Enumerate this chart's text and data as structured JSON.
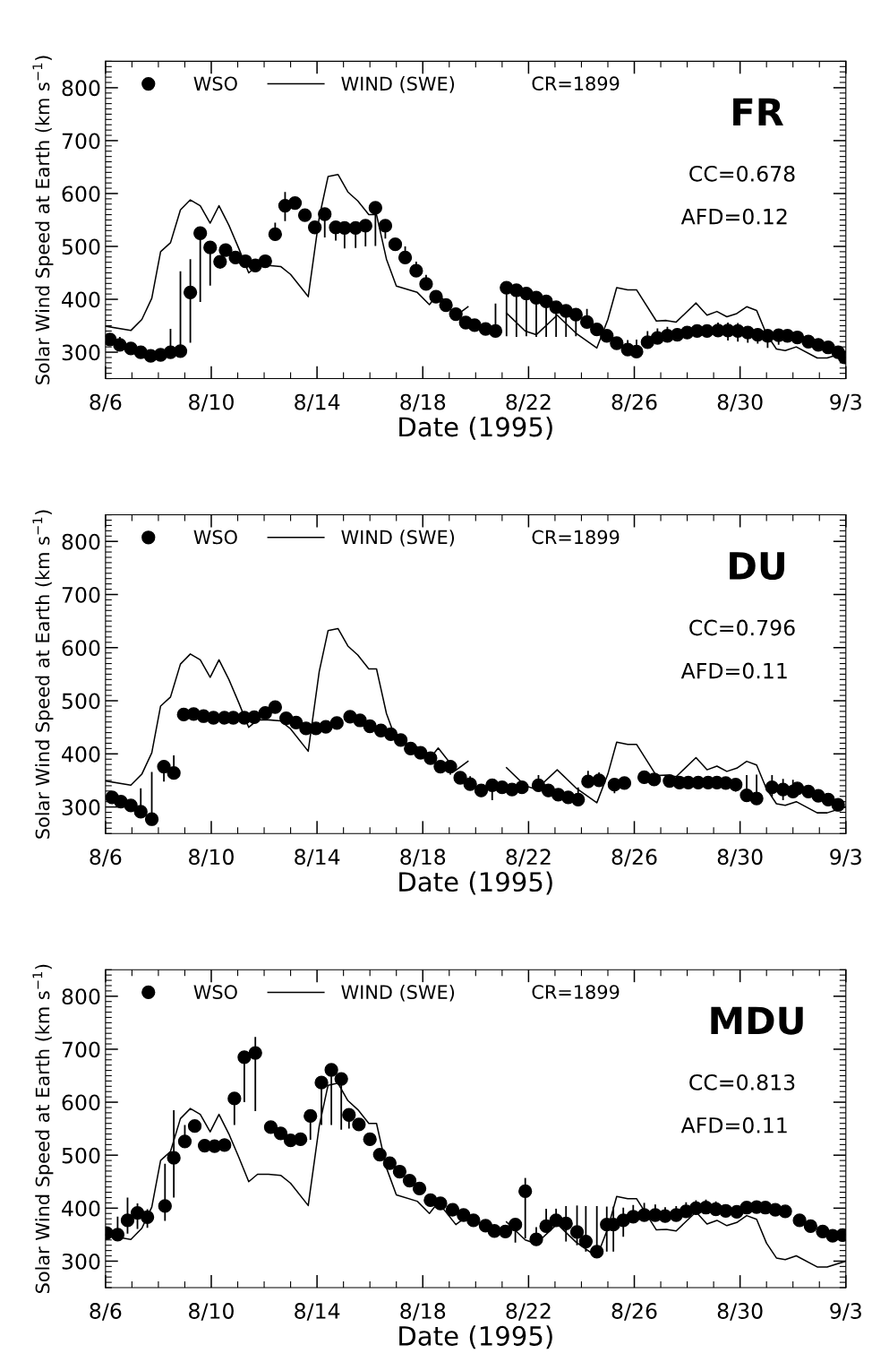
{
  "chart_data": [
    {
      "type": "scatter",
      "xlabel": "Date (1995)",
      "ylabel": "Solar Wind Speed at Earth (km s$^{−1}$)",
      "annotations": [
        "CR=1899",
        "FR",
        "CC=0.678",
        "AFD=0.12"
      ],
      "xlim": [
        "1995-08-06",
        "1995-09-03"
      ],
      "xticks": [
        {
          "value": "1995-08-06",
          "label": "8/6"
        },
        {
          "value": "1995-08-10",
          "label": "8/10"
        },
        {
          "value": "1995-08-14",
          "label": "8/14"
        },
        {
          "value": "1995-08-18",
          "label": "8/18"
        },
        {
          "value": "1995-08-22",
          "label": "8/22"
        },
        {
          "value": "1995-08-26",
          "label": "8/26"
        },
        {
          "value": "1995-08-30",
          "label": "8/30"
        },
        {
          "value": "1995-09-03",
          "label": "9/3"
        }
      ],
      "ylim": [
        250,
        850
      ],
      "yticks": [
        300,
        400,
        500,
        600,
        700,
        800
      ],
      "grid": false,
      "legend": "top left",
      "series": [
        {
          "name": "WSO",
          "color": "#000000",
          "marker": "circle",
          "x": [
            "1995-08-06T04:00",
            "1995-08-06T13:00",
            "1995-08-06T23:00",
            "1995-08-07T08:00",
            "1995-08-07T17:00",
            "1995-08-08T02:00",
            "1995-08-08T11:00",
            "1995-08-08T20:00",
            "1995-08-09T05:00",
            "1995-08-09T14:00",
            "1995-08-09T23:00",
            "1995-08-10T08:00",
            "1995-08-10T13:00",
            "1995-08-10T22:00",
            "1995-08-11T07:00",
            "1995-08-11T16:00",
            "1995-08-12T01:00",
            "1995-08-12T10:00",
            "1995-08-12T19:00",
            "1995-08-13T04:00",
            "1995-08-13T13:00",
            "1995-08-13T22:00",
            "1995-08-14T07:00",
            "1995-08-14T17:00",
            "1995-08-15T01:00",
            "1995-08-15T11:00",
            "1995-08-15T20:00",
            "1995-08-16T05:00",
            "1995-08-16T14:00",
            "1995-08-16T23:00",
            "1995-08-17T08:00",
            "1995-08-17T18:00",
            "1995-08-18T03:00",
            "1995-08-18T12:00",
            "1995-08-18T21:00",
            "1995-08-19T06:00",
            "1995-08-19T15:00",
            "1995-08-19T23:00",
            "1995-08-20T09:00",
            "1995-08-20T18:00",
            "1995-08-21T04:00",
            "1995-08-21T13:00",
            "1995-08-21T22:00",
            "1995-08-22T07:00",
            "1995-08-22T16:00",
            "1995-08-23T01:00",
            "1995-08-23T10:00",
            "1995-08-23T19:00",
            "1995-08-24T05:00",
            "1995-08-24T14:00",
            "1995-08-24T23:00",
            "1995-08-25T08:00",
            "1995-08-25T18:00",
            "1995-08-26T02:00",
            "1995-08-26T12:00",
            "1995-08-26T21:00",
            "1995-08-27T06:00",
            "1995-08-27T15:00",
            "1995-08-28T00:00",
            "1995-08-28T09:00",
            "1995-08-28T18:00",
            "1995-08-29T04:00",
            "1995-08-29T13:00",
            "1995-08-29T22:00",
            "1995-08-30T07:00",
            "1995-08-30T16:00",
            "1995-08-31T01:00",
            "1995-08-31T11:00",
            "1995-08-31T19:00",
            "1995-09-01T04:00",
            "1995-09-01T14:00",
            "1995-09-01T23:00",
            "1995-09-02T08:00",
            "1995-09-02T17:00",
            "1995-09-02T23:00"
          ],
          "values": [
            324,
            314,
            307,
            300,
            293,
            295,
            300,
            302,
            413,
            525,
            498,
            471,
            493,
            479,
            472,
            464,
            472,
            523,
            577,
            582,
            559,
            536,
            561,
            536,
            535,
            535,
            539,
            573,
            539,
            504,
            479,
            454,
            429,
            405,
            389,
            372,
            356,
            351,
            344,
            340,
            422,
            417,
            411,
            403,
            396,
            385,
            378,
            371,
            357,
            343,
            331,
            317,
            305,
            301,
            319,
            327,
            331,
            333,
            337,
            340,
            340,
            341,
            341,
            340,
            337,
            333,
            331,
            332,
            331,
            328,
            320,
            314,
            309,
            300,
            290
          ],
          "errors": [
            null,
            [
              314,
              329
            ],
            null,
            null,
            null,
            null,
            [
              300,
              344
            ],
            [
              302,
              453
            ],
            [
              318,
              476
            ],
            [
              395,
              525
            ],
            [
              426,
              498
            ],
            [
              458,
              471
            ],
            null,
            null,
            null,
            null,
            null,
            [
              523,
              545
            ],
            [
              548,
              603
            ],
            null,
            null,
            null,
            [
              517,
              561
            ],
            [
              511,
              536
            ],
            [
              496,
              535
            ],
            [
              497,
              535
            ],
            [
              500,
              539
            ],
            [
              501,
              573
            ],
            [
              515,
              539
            ],
            null,
            [
              479,
              500
            ],
            [
              454,
              471
            ],
            [
              429,
              446
            ],
            null,
            null,
            null,
            null,
            null,
            null,
            [
              340,
              392
            ],
            [
              330,
              422
            ],
            [
              329,
              417
            ],
            [
              330,
              411
            ],
            [
              329,
              403
            ],
            [
              329,
              396
            ],
            [
              329,
              385
            ],
            [
              329,
              378
            ],
            [
              330,
              371
            ],
            [
              357,
              382
            ],
            null,
            null,
            null,
            [
              305,
              323
            ],
            [
              301,
              324
            ],
            [
              319,
              340
            ],
            [
              327,
              345
            ],
            [
              331,
              348
            ],
            null,
            null,
            null,
            null,
            [
              341,
              356
            ],
            [
              322,
              356
            ],
            [
              320,
              355
            ],
            [
              318,
              337
            ],
            [
              316,
              333
            ],
            [
              308,
              331
            ],
            [
              314,
              332
            ],
            null,
            null,
            null,
            null,
            null,
            null,
            null
          ]
        },
        {
          "name": "WIND (SWE)",
          "type": "line",
          "color": "#000000",
          "line_style": "solid",
          "x": [
            "1995-08-06T00:00",
            "1995-08-06T23:00",
            "1995-08-07T09:00",
            "1995-08-07T18:00",
            "1995-08-08T02:00",
            "1995-08-08T11:00",
            "1995-08-08T20:00",
            "1995-08-09T05:00",
            "1995-08-09T14:00",
            "1995-08-09T23:00",
            "1995-08-10T07:00",
            "1995-08-10T16:00",
            "1995-08-11T01:00",
            "1995-08-11T10:00",
            "1995-08-11T18:00",
            "1995-08-12T04:00",
            "1995-08-12T15:00",
            "1995-08-13T00:00",
            "1995-08-13T16:00",
            "1995-08-14T02:00",
            "1995-08-14T10:00",
            "1995-08-14T19:00",
            "1995-08-15T04:00",
            "1995-08-15T13:00",
            "1995-08-15T23:00",
            "1995-08-16T06:00",
            "1995-08-16T15:00",
            "1995-08-17T00:00",
            "1995-08-17T19:00",
            "1995-08-18T06:00",
            "1995-08-18T14:00",
            "1995-08-19T06:00",
            "1995-08-19T17:00",
            "1995-08-19T20:00",
            "1995-08-21T02:00",
            "1995-08-21T04:00",
            "1995-08-21T21:00",
            "1995-08-22T07:00",
            "1995-08-23T02:00",
            "1995-08-23T19:00",
            "1995-08-24T14:00",
            "1995-08-25T00:00",
            "1995-08-25T08:00",
            "1995-08-25T18:00",
            "1995-08-26T02:00",
            "1995-08-26T20:00",
            "1995-08-27T05:00",
            "1995-08-27T14:00",
            "1995-08-28T08:00",
            "1995-08-28T18:00",
            "1995-08-29T03:00",
            "1995-08-29T12:00",
            "1995-08-29T21:00",
            "1995-08-30T06:00",
            "1995-08-30T15:00",
            "1995-08-31T00:00",
            "1995-08-31T09:00",
            "1995-08-31T17:00",
            "1995-09-01T03:00",
            "1995-09-01T22:00",
            "1995-09-02T07:00",
            "1995-09-03T00:00"
          ],
          "values": [
            349,
            341,
            362,
            402,
            490,
            507,
            569,
            588,
            577,
            544,
            577,
            540,
            496,
            450,
            464,
            464,
            462,
            447,
            405,
            555,
            632,
            636,
            603,
            586,
            560,
            560,
            476,
            425,
            413,
            390,
            411,
            369,
            386,
            null,
            null,
            374,
            340,
            333,
            370,
            336,
            308,
            362,
            422,
            418,
            418,
            359,
            360,
            357,
            393,
            370,
            377,
            367,
            373,
            386,
            379,
            334,
            306,
            303,
            310,
            289,
            289,
            300
          ]
        }
      ]
    },
    {
      "type": "scatter",
      "xlabel": "Date (1995)",
      "ylabel": "Solar Wind Speed at Earth (km s$^{−1}$)",
      "annotations": [
        "CR=1899",
        "DU",
        "CC=0.796",
        "AFD=0.11"
      ],
      "xlim": [
        "1995-08-06",
        "1995-09-03"
      ],
      "xticks": [
        {
          "value": "1995-08-06",
          "label": "8/6"
        },
        {
          "value": "1995-08-10",
          "label": "8/10"
        },
        {
          "value": "1995-08-14",
          "label": "8/14"
        },
        {
          "value": "1995-08-18",
          "label": "8/18"
        },
        {
          "value": "1995-08-22",
          "label": "8/22"
        },
        {
          "value": "1995-08-26",
          "label": "8/26"
        },
        {
          "value": "1995-08-30",
          "label": "8/30"
        },
        {
          "value": "1995-09-03",
          "label": "9/3"
        }
      ],
      "ylim": [
        250,
        850
      ],
      "yticks": [
        300,
        400,
        500,
        600,
        700,
        800
      ],
      "grid": false,
      "legend": "top left",
      "series": [
        {
          "name": "WSO",
          "color": "#000000",
          "marker": "circle",
          "x": [
            "1995-08-06T06:00",
            "1995-08-06T14:00",
            "1995-08-06T23:00",
            "1995-08-07T08:00",
            "1995-08-07T18:00",
            "1995-08-08T05:00",
            "1995-08-08T14:00",
            "1995-08-08T23:00",
            "1995-08-09T08:00",
            "1995-08-09T17:00",
            "1995-08-10T02:00",
            "1995-08-10T12:00",
            "1995-08-10T20:00",
            "1995-08-11T06:00",
            "1995-08-11T15:00",
            "1995-08-12T01:00",
            "1995-08-12T10:00",
            "1995-08-12T20:00",
            "1995-08-13T05:00",
            "1995-08-13T14:00",
            "1995-08-13T23:00",
            "1995-08-14T08:00",
            "1995-08-14T18:00",
            "1995-08-15T06:00",
            "1995-08-15T15:00",
            "1995-08-16T00:00",
            "1995-08-16T10:00",
            "1995-08-16T19:00",
            "1995-08-17T04:00",
            "1995-08-17T13:00",
            "1995-08-17T22:00",
            "1995-08-18T07:00",
            "1995-08-18T16:00",
            "1995-08-19T01:00",
            "1995-08-19T10:00",
            "1995-08-19T19:00",
            "1995-08-20T05:00",
            "1995-08-20T15:00",
            "1995-08-21T00:00",
            "1995-08-21T09:00",
            "1995-08-21T18:00",
            "1995-08-22T09:00",
            "1995-08-22T18:00",
            "1995-08-23T03:00",
            "1995-08-23T12:00",
            "1995-08-23T21:00",
            "1995-08-24T06:00",
            "1995-08-24T16:00",
            "1995-08-25T06:00",
            "1995-08-25T15:00",
            "1995-08-26T09:00",
            "1995-08-26T18:00",
            "1995-08-27T08:00",
            "1995-08-27T17:00",
            "1995-08-28T01:00",
            "1995-08-28T10:00",
            "1995-08-28T19:00",
            "1995-08-29T03:00",
            "1995-08-29T11:00",
            "1995-08-29T20:00",
            "1995-08-30T06:00",
            "1995-08-30T15:00",
            "1995-08-31T05:00",
            "1995-08-31T15:00",
            "1995-09-01T00:00",
            "1995-09-01T04:00",
            "1995-09-01T14:00",
            "1995-09-01T23:00",
            "1995-09-02T08:00",
            "1995-09-02T17:00"
          ],
          "values": [
            318,
            310,
            303,
            291,
            277,
            376,
            364,
            474,
            475,
            471,
            468,
            468,
            468,
            468,
            469,
            477,
            488,
            467,
            459,
            448,
            448,
            451,
            458,
            470,
            463,
            452,
            444,
            437,
            426,
            410,
            402,
            392,
            376,
            376,
            355,
            343,
            331,
            341,
            337,
            333,
            337,
            341,
            331,
            323,
            318,
            314,
            348,
            350,
            342,
            345,
            356,
            352,
            349,
            346,
            346,
            346,
            346,
            346,
            345,
            342,
            322,
            316,
            337,
            333,
            329,
            335,
            329,
            321,
            314,
            304
          ],
          "errors": [
            [
              318,
              328
            ],
            null,
            [
              303,
              313
            ],
            [
              291,
              335
            ],
            [
              277,
              366
            ],
            [
              348,
              376
            ],
            [
              364,
              397
            ],
            null,
            null,
            null,
            10,
            [
              456,
              478
            ],
            10,
            null,
            null,
            null,
            [
              478,
              500
            ],
            null,
            null,
            null,
            [
              438,
              448
            ],
            null,
            null,
            null,
            null,
            null,
            null,
            null,
            null,
            null,
            null,
            [
              382,
              392
            ],
            null,
            [
              361,
              376
            ],
            null,
            [
              343,
              358
            ],
            null,
            [
              313,
              341
            ],
            null,
            null,
            null,
            [
              341,
              360
            ],
            null,
            null,
            null,
            [
              314,
              337
            ],
            [
              348,
              368
            ],
            [
              350,
              365
            ],
            [
              326,
              342
            ],
            null,
            null,
            null,
            [
              339,
              349
            ],
            null,
            null,
            null,
            null,
            null,
            null,
            [
              329,
              342
            ],
            [
              322,
              360
            ],
            [
              316,
              361
            ],
            [
              319,
              360
            ],
            [
              313,
              353
            ],
            [
              329,
              351
            ],
            null,
            null,
            null,
            null,
            null
          ]
        },
        {
          "name": "WIND (SWE)",
          "type": "line",
          "color": "#000000",
          "line_style": "solid",
          "x": [
            "1995-08-06T00:00",
            "1995-08-06T23:00",
            "1995-08-07T09:00",
            "1995-08-07T18:00",
            "1995-08-08T02:00",
            "1995-08-08T11:00",
            "1995-08-08T20:00",
            "1995-08-09T05:00",
            "1995-08-09T14:00",
            "1995-08-09T23:00",
            "1995-08-10T07:00",
            "1995-08-10T16:00",
            "1995-08-11T01:00",
            "1995-08-11T10:00",
            "1995-08-11T18:00",
            "1995-08-12T04:00",
            "1995-08-12T15:00",
            "1995-08-13T00:00",
            "1995-08-13T16:00",
            "1995-08-14T02:00",
            "1995-08-14T10:00",
            "1995-08-14T19:00",
            "1995-08-15T04:00",
            "1995-08-15T13:00",
            "1995-08-15T23:00",
            "1995-08-16T06:00",
            "1995-08-16T15:00",
            "1995-08-17T00:00",
            "1995-08-17T19:00",
            "1995-08-18T06:00",
            "1995-08-18T14:00",
            "1995-08-19T06:00",
            "1995-08-19T17:00",
            "1995-08-19T20:00",
            "1995-08-21T02:00",
            "1995-08-21T04:00",
            "1995-08-21T21:00",
            "1995-08-22T07:00",
            "1995-08-23T02:00",
            "1995-08-23T19:00",
            "1995-08-24T14:00",
            "1995-08-25T00:00",
            "1995-08-25T08:00",
            "1995-08-25T18:00",
            "1995-08-26T02:00",
            "1995-08-26T20:00",
            "1995-08-27T05:00",
            "1995-08-27T14:00",
            "1995-08-28T08:00",
            "1995-08-28T18:00",
            "1995-08-29T03:00",
            "1995-08-29T12:00",
            "1995-08-29T21:00",
            "1995-08-30T06:00",
            "1995-08-30T15:00",
            "1995-08-31T00:00",
            "1995-08-31T09:00",
            "1995-08-31T17:00",
            "1995-09-01T03:00",
            "1995-09-01T22:00",
            "1995-09-02T07:00",
            "1995-09-03T00:00"
          ],
          "values": [
            349,
            341,
            362,
            402,
            490,
            507,
            569,
            588,
            577,
            544,
            577,
            540,
            496,
            450,
            464,
            464,
            462,
            447,
            405,
            555,
            632,
            636,
            603,
            586,
            560,
            560,
            476,
            425,
            413,
            390,
            411,
            369,
            386,
            null,
            null,
            374,
            340,
            333,
            370,
            336,
            308,
            362,
            422,
            418,
            418,
            359,
            360,
            357,
            393,
            370,
            377,
            367,
            373,
            386,
            379,
            334,
            306,
            303,
            310,
            289,
            289,
            300
          ]
        }
      ]
    },
    {
      "type": "scatter",
      "xlabel": "Date (1995)",
      "ylabel": "Solar Wind Speed at Earth (km s$^{−1}$)",
      "annotations": [
        "CR=1899",
        "MDU",
        "CC=0.813",
        "AFD=0.11"
      ],
      "xlim": [
        "1995-08-06",
        "1995-09-03"
      ],
      "xticks": [
        {
          "value": "1995-08-06",
          "label": "8/6"
        },
        {
          "value": "1995-08-10",
          "label": "8/10"
        },
        {
          "value": "1995-08-14",
          "label": "8/14"
        },
        {
          "value": "1995-08-18",
          "label": "8/18"
        },
        {
          "value": "1995-08-22",
          "label": "8/22"
        },
        {
          "value": "1995-08-26",
          "label": "8/26"
        },
        {
          "value": "1995-08-30",
          "label": "8/30"
        },
        {
          "value": "1995-09-03",
          "label": "9/3"
        }
      ],
      "ylim": [
        250,
        850
      ],
      "yticks": [
        300,
        400,
        500,
        600,
        700,
        800
      ],
      "grid": false,
      "legend": "top left",
      "series": [
        {
          "name": "WSO",
          "color": "#000000",
          "marker": "circle",
          "x": [
            "1995-08-06T01:00",
            "1995-08-06T11:00",
            "1995-08-06T20:00",
            "1995-08-07T05:00",
            "1995-08-07T14:00",
            "1995-08-08T06:00",
            "1995-08-08T14:00",
            "1995-08-09T00:00",
            "1995-08-09T09:00",
            "1995-08-09T18:00",
            "1995-08-10T03:00",
            "1995-08-10T12:00",
            "1995-08-10T21:00",
            "1995-08-11T06:00",
            "1995-08-11T16:00",
            "1995-08-12T06:00",
            "1995-08-12T15:00",
            "1995-08-13T00:00",
            "1995-08-13T09:00",
            "1995-08-13T18:00",
            "1995-08-14T04:00",
            "1995-08-14T13:00",
            "1995-08-14T22:00",
            "1995-08-15T05:00",
            "1995-08-15T14:00",
            "1995-08-16T00:00",
            "1995-08-16T09:00",
            "1995-08-16T18:00",
            "1995-08-17T03:00",
            "1995-08-17T12:00",
            "1995-08-17T21:00",
            "1995-08-18T07:00",
            "1995-08-18T16:00",
            "1995-08-19T03:00",
            "1995-08-19T13:00",
            "1995-08-19T22:00",
            "1995-08-20T09:00",
            "1995-08-20T17:00",
            "1995-08-21T03:00",
            "1995-08-21T12:00",
            "1995-08-21T21:00",
            "1995-08-22T07:00",
            "1995-08-22T16:00",
            "1995-08-23T01:00",
            "1995-08-23T10:00",
            "1995-08-23T20:00",
            "1995-08-24T04:00",
            "1995-08-24T14:00",
            "1995-08-24T23:00",
            "1995-08-25T05:00",
            "1995-08-25T14:00",
            "1995-08-25T23:00",
            "1995-08-26T09:00",
            "1995-08-26T19:00",
            "1995-08-27T04:00",
            "1995-08-27T14:00",
            "1995-08-27T23:00",
            "1995-08-28T08:00",
            "1995-08-28T17:00",
            "1995-08-29T02:00",
            "1995-08-29T11:00",
            "1995-08-29T21:00",
            "1995-08-30T06:00",
            "1995-08-30T15:00",
            "1995-08-30T23:00",
            "1995-08-31T08:00",
            "1995-08-31T17:00",
            "1995-09-01T06:00",
            "1995-09-01T16:00",
            "1995-09-02T03:00",
            "1995-09-02T12:00",
            "1995-09-02T21:00"
          ],
          "values": [
            353,
            350,
            377,
            391,
            383,
            404,
            495,
            526,
            555,
            518,
            517,
            519,
            607,
            685,
            693,
            553,
            541,
            528,
            530,
            574,
            637,
            661,
            644,
            576,
            558,
            530,
            501,
            485,
            469,
            452,
            437,
            415,
            409,
            397,
            387,
            377,
            367,
            357,
            356,
            369,
            432,
            341,
            366,
            377,
            371,
            355,
            337,
            318,
            369,
            369,
            377,
            384,
            387,
            387,
            385,
            387,
            394,
            400,
            401,
            398,
            395,
            393,
            401,
            402,
            401,
            397,
            394,
            377,
            366,
            356,
            348,
            349
          ],
          "errors": [
            10,
            [
              350,
              384
            ],
            [
              352,
              420
            ],
            [
              361,
              409
            ],
            [
              363,
              398
            ],
            [
              376,
              484
            ],
            [
              420,
              585
            ],
            [
              526,
              557
            ],
            null,
            null,
            null,
            null,
            [
              557,
              607
            ],
            [
              600,
              685
            ],
            [
              583,
              723
            ],
            null,
            null,
            null,
            null,
            [
              529,
              574
            ],
            [
              557,
              637
            ],
            [
              557,
              661
            ],
            [
              548,
              644
            ],
            [
              550,
              576
            ],
            null,
            null,
            null,
            null,
            null,
            null,
            null,
            null,
            null,
            null,
            null,
            null,
            null,
            null,
            null,
            [
              335,
              369
            ],
            [
              343,
              457
            ],
            [
              341,
              364
            ],
            [
              366,
              399
            ],
            [
              377,
              399
            ],
            [
              337,
              404
            ],
            [
              330,
              405
            ],
            [
              318,
              404
            ],
            [
              318,
              404
            ],
            [
              318,
              403
            ],
            [
              318,
              403
            ],
            [
              346,
              401
            ],
            [
              384,
              406
            ],
            [
              387,
              410
            ],
            [
              387,
              407
            ],
            [
              385,
              402
            ],
            [
              387,
              404
            ],
            [
              394,
              411
            ],
            [
              400,
              415
            ],
            [
              401,
              416
            ],
            [
              398,
              413
            ],
            null,
            null,
            null,
            null,
            null,
            null,
            null,
            null,
            null,
            null,
            null,
            null
          ]
        },
        {
          "name": "WIND (SWE)",
          "type": "line",
          "color": "#000000",
          "line_style": "solid",
          "x": [
            "1995-08-06T00:00",
            "1995-08-06T23:00",
            "1995-08-07T09:00",
            "1995-08-07T18:00",
            "1995-08-08T02:00",
            "1995-08-08T11:00",
            "1995-08-08T20:00",
            "1995-08-09T05:00",
            "1995-08-09T14:00",
            "1995-08-09T23:00",
            "1995-08-10T07:00",
            "1995-08-10T16:00",
            "1995-08-11T01:00",
            "1995-08-11T10:00",
            "1995-08-11T18:00",
            "1995-08-12T04:00",
            "1995-08-12T15:00",
            "1995-08-13T00:00",
            "1995-08-13T16:00",
            "1995-08-14T02:00",
            "1995-08-14T10:00",
            "1995-08-14T19:00",
            "1995-08-15T04:00",
            "1995-08-15T13:00",
            "1995-08-15T23:00",
            "1995-08-16T06:00",
            "1995-08-16T15:00",
            "1995-08-17T00:00",
            "1995-08-17T19:00",
            "1995-08-18T06:00",
            "1995-08-18T14:00",
            "1995-08-19T06:00",
            "1995-08-19T17:00",
            "1995-08-19T20:00",
            "1995-08-21T02:00",
            "1995-08-21T04:00",
            "1995-08-21T21:00",
            "1995-08-22T07:00",
            "1995-08-23T02:00",
            "1995-08-23T19:00",
            "1995-08-24T14:00",
            "1995-08-25T00:00",
            "1995-08-25T08:00",
            "1995-08-25T18:00",
            "1995-08-26T02:00",
            "1995-08-26T20:00",
            "1995-08-27T05:00",
            "1995-08-27T14:00",
            "1995-08-28T08:00",
            "1995-08-28T18:00",
            "1995-08-29T03:00",
            "1995-08-29T12:00",
            "1995-08-29T21:00",
            "1995-08-30T06:00",
            "1995-08-30T15:00",
            "1995-08-31T00:00",
            "1995-08-31T09:00",
            "1995-08-31T17:00",
            "1995-09-01T03:00",
            "1995-09-01T22:00",
            "1995-09-02T07:00",
            "1995-09-03T00:00"
          ],
          "values": [
            349,
            341,
            362,
            402,
            490,
            507,
            569,
            588,
            577,
            544,
            577,
            540,
            496,
            450,
            464,
            464,
            462,
            447,
            405,
            555,
            632,
            636,
            603,
            586,
            560,
            560,
            476,
            425,
            413,
            390,
            411,
            369,
            386,
            null,
            null,
            374,
            340,
            333,
            370,
            336,
            308,
            362,
            422,
            418,
            418,
            359,
            360,
            357,
            393,
            370,
            377,
            367,
            373,
            386,
            379,
            334,
            306,
            303,
            310,
            289,
            289,
            300
          ]
        }
      ]
    }
  ]
}
